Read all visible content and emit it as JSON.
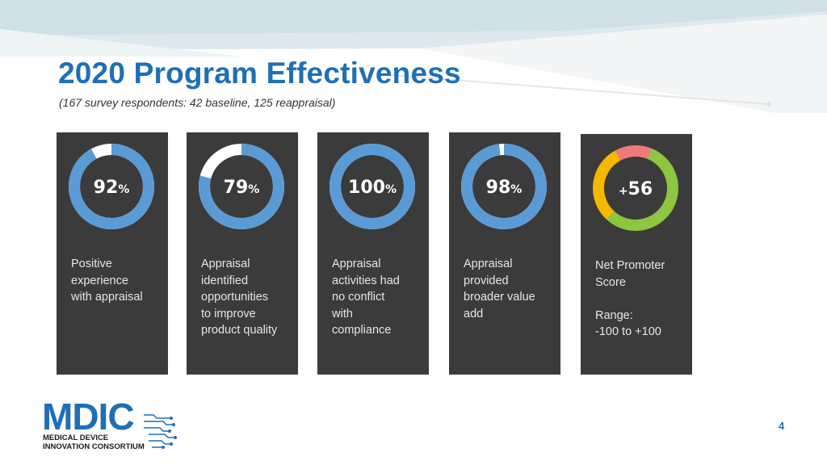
{
  "slide": {
    "title": "2020 Program Effectiveness",
    "subtitle": "(167 survey respondents: 42 baseline, 125 reappraisal)",
    "page_number": "4"
  },
  "cards": [
    {
      "value": "92",
      "unit": "%",
      "fraction": 0.92,
      "description": "Positive\nexperience\nwith appraisal"
    },
    {
      "value": "79",
      "unit": "%",
      "fraction": 0.79,
      "description": "Appraisal\nidentified\nopportunities\nto improve\nproduct quality"
    },
    {
      "value": "100",
      "unit": "%",
      "fraction": 1.0,
      "description": "Appraisal\nactivities had\nno conflict\nwith\ncompliance"
    },
    {
      "value": "98",
      "unit": "%",
      "fraction": 0.98,
      "description": "Appraisal\nprovided\nbroader value\nadd"
    },
    {
      "value": "56",
      "prefix": "+",
      "description": "Net Promoter\nScore\n\nRange:\n-100 to +100",
      "segments": [
        {
          "color": "#8dc63f",
          "fraction": 0.56
        },
        {
          "color": "#f5b800",
          "fraction": 0.3
        },
        {
          "color": "#f07a7a",
          "fraction": 0.14
        }
      ]
    }
  ],
  "logo": {
    "main": "MDIC",
    "line1": "MEDICAL DEVICE",
    "line2": "INNOVATION CONSORTIUM"
  },
  "colors": {
    "title": "#1f6fb5",
    "card_bg": "#3b3b3b",
    "donut_fill": "#5b9bd5",
    "donut_track": "#ffffff",
    "text_light": "#e6e6e6"
  }
}
